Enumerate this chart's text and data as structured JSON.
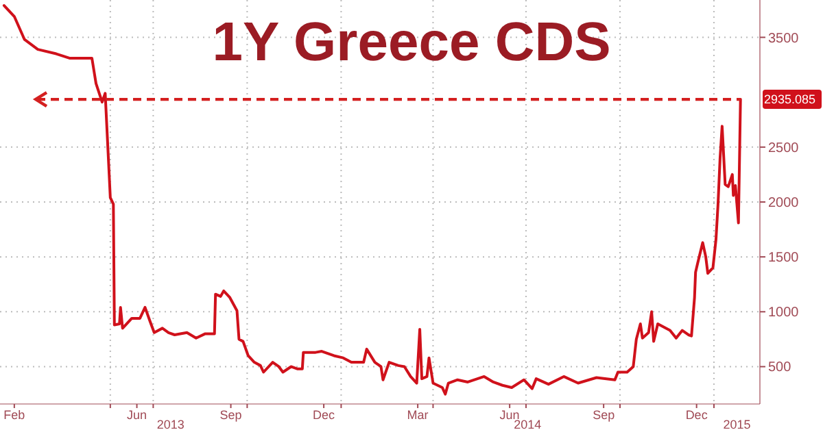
{
  "chart_data": {
    "type": "line",
    "title": "1Y Greece CDS",
    "x": [
      "2013-02-05",
      "2013-02-15",
      "2013-02-25",
      "2013-03-10",
      "2013-03-28",
      "2013-04-10",
      "2013-05-02",
      "2013-05-06",
      "2013-05-12",
      "2013-05-15",
      "2013-05-20",
      "2013-05-23",
      "2013-05-24",
      "2013-05-29",
      "2013-05-30",
      "2013-06-01",
      "2013-06-04",
      "2013-06-10",
      "2013-06-18",
      "2013-06-23",
      "2013-06-28",
      "2013-07-02",
      "2013-07-10",
      "2013-07-16",
      "2013-07-22",
      "2013-08-03",
      "2013-08-12",
      "2013-08-21",
      "2013-08-30",
      "2013-08-31",
      "2013-09-05",
      "2013-09-08",
      "2013-09-14",
      "2013-09-21",
      "2013-09-23",
      "2013-09-27",
      "2013-10-02",
      "2013-10-08",
      "2013-10-14",
      "2013-10-17",
      "2013-10-26",
      "2013-11-01",
      "2013-11-05",
      "2013-11-13",
      "2013-11-19",
      "2013-11-24",
      "2013-11-25",
      "2013-12-07",
      "2013-12-13",
      "2013-12-25",
      "2014-01-03",
      "2014-01-11",
      "2014-01-23",
      "2014-01-26",
      "2014-02-03",
      "2014-02-09",
      "2014-02-11",
      "2014-02-17",
      "2014-02-26",
      "2014-03-04",
      "2014-03-10",
      "2014-03-16",
      "2014-03-19",
      "2014-03-21",
      "2014-03-26",
      "2014-03-28",
      "2014-04-01",
      "2014-04-10",
      "2014-04-13",
      "2014-04-16",
      "2014-04-25",
      "2014-05-05",
      "2014-05-21",
      "2014-05-30",
      "2014-06-08",
      "2014-06-17",
      "2014-06-29",
      "2014-07-07",
      "2014-07-11",
      "2014-07-23",
      "2014-08-07",
      "2014-08-21",
      "2014-09-08",
      "2014-09-26",
      "2014-09-29",
      "2014-10-08",
      "2014-10-14",
      "2014-10-17",
      "2014-10-21",
      "2014-10-23",
      "2014-10-29",
      "2014-11-01",
      "2014-11-03",
      "2014-11-07",
      "2014-11-19",
      "2014-11-25",
      "2014-12-01",
      "2014-12-07",
      "2014-12-10",
      "2014-12-13",
      "2014-12-14",
      "2014-12-16",
      "2014-12-21",
      "2014-12-24",
      "2014-12-26",
      "2014-12-31",
      "2015-01-03",
      "2015-01-05",
      "2015-01-07",
      "2015-01-09",
      "2015-01-12",
      "2015-01-15",
      "2015-01-19",
      "2015-01-20",
      "2015-01-22",
      "2015-01-25",
      "2015-01-27"
    ],
    "series": [
      {
        "color": "#d0111b",
        "values": [
          3790,
          3690,
          3480,
          3390,
          3350,
          3310,
          3310,
          3080,
          2910,
          2990,
          2040,
          1980,
          880,
          890,
          1040,
          850,
          880,
          940,
          940,
          1040,
          910,
          810,
          850,
          810,
          790,
          810,
          760,
          800,
          800,
          1160,
          1140,
          1190,
          1130,
          1010,
          750,
          730,
          600,
          540,
          510,
          450,
          540,
          500,
          450,
          500,
          480,
          480,
          630,
          630,
          640,
          600,
          580,
          540,
          540,
          660,
          540,
          500,
          380,
          540,
          510,
          500,
          410,
          350,
          840,
          390,
          410,
          580,
          350,
          310,
          250,
          350,
          380,
          360,
          410,
          360,
          330,
          310,
          380,
          300,
          390,
          340,
          410,
          350,
          400,
          380,
          450,
          450,
          500,
          750,
          890,
          760,
          810,
          1000,
          730,
          890,
          830,
          760,
          830,
          790,
          780,
          1130,
          1360,
          1440,
          1630,
          1500,
          1350,
          1400,
          1660,
          1980,
          2400,
          2690,
          2160,
          2140,
          2250,
          2060,
          2150,
          1810,
          2935.085
        ]
      }
    ],
    "xlim": [
      "2013-02-01",
      "2015-02-15"
    ],
    "xticks": [
      {
        "value": "2013-02-15",
        "label": "Feb"
      },
      {
        "value": "2013-05-20",
        "label": null
      },
      {
        "value": "2013-06-15",
        "label": "Jun"
      },
      {
        "value": "2013-07-01",
        "label": null
      },
      {
        "value": "2013-09-15",
        "label": "Sep"
      },
      {
        "value": "2013-10-01",
        "label": null
      },
      {
        "value": "2013-12-15",
        "label": "Dec"
      },
      {
        "value": "2014-01-01",
        "label": null
      },
      {
        "value": "2014-03-17",
        "label": "Mar"
      },
      {
        "value": "2014-04-01",
        "label": null
      },
      {
        "value": "2014-06-15",
        "label": "Jun"
      },
      {
        "value": "2014-07-01",
        "label": null
      },
      {
        "value": "2014-09-15",
        "label": "Sep"
      },
      {
        "value": "2014-10-01",
        "label": null
      },
      {
        "value": "2014-12-15",
        "label": "Dec"
      },
      {
        "value": "2015-01-01",
        "label": null
      }
    ],
    "ylim": [
      160,
      3840
    ],
    "yticks": [
      500,
      1000,
      1500,
      2000,
      2500,
      3500
    ],
    "grid": true,
    "ref_lines": [
      {
        "axis": "y",
        "value": 2935.085,
        "color": "#d42020",
        "line_style": "dashed"
      }
    ],
    "annotations": [
      {
        "text": "2935.085",
        "x": "2015-01-27",
        "y": 2935.085
      },
      "2013",
      "2014",
      "2015"
    ]
  }
}
